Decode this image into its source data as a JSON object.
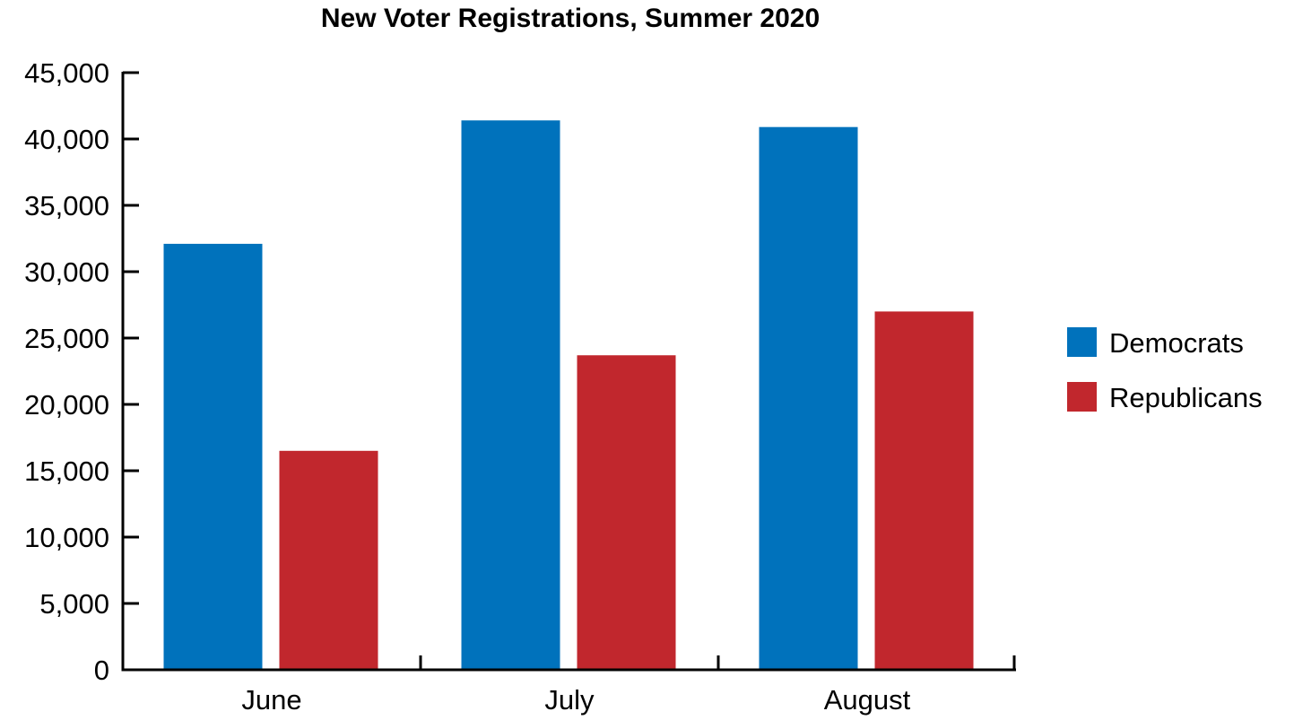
{
  "chart_data": {
    "type": "bar",
    "title": "New Voter Registrations, Summer 2020",
    "categories": [
      "June",
      "July",
      "August"
    ],
    "series": [
      {
        "name": "Democrats",
        "color": "#0072BC",
        "values": [
          32100,
          41400,
          40900
        ]
      },
      {
        "name": "Republicans",
        "color": "#C1272D",
        "values": [
          16500,
          23700,
          27000
        ]
      }
    ],
    "ylim": [
      0,
      45000
    ],
    "yticks": [
      "0",
      "5,000",
      "10,000",
      "15,000",
      "20,000",
      "25,000",
      "30,000",
      "35,000",
      "40,000",
      "45,000"
    ],
    "ytick_values": [
      0,
      5000,
      10000,
      15000,
      20000,
      25000,
      30000,
      35000,
      40000,
      45000
    ],
    "xlabel": "",
    "ylabel": "",
    "grid": false,
    "legend_position": "right"
  }
}
